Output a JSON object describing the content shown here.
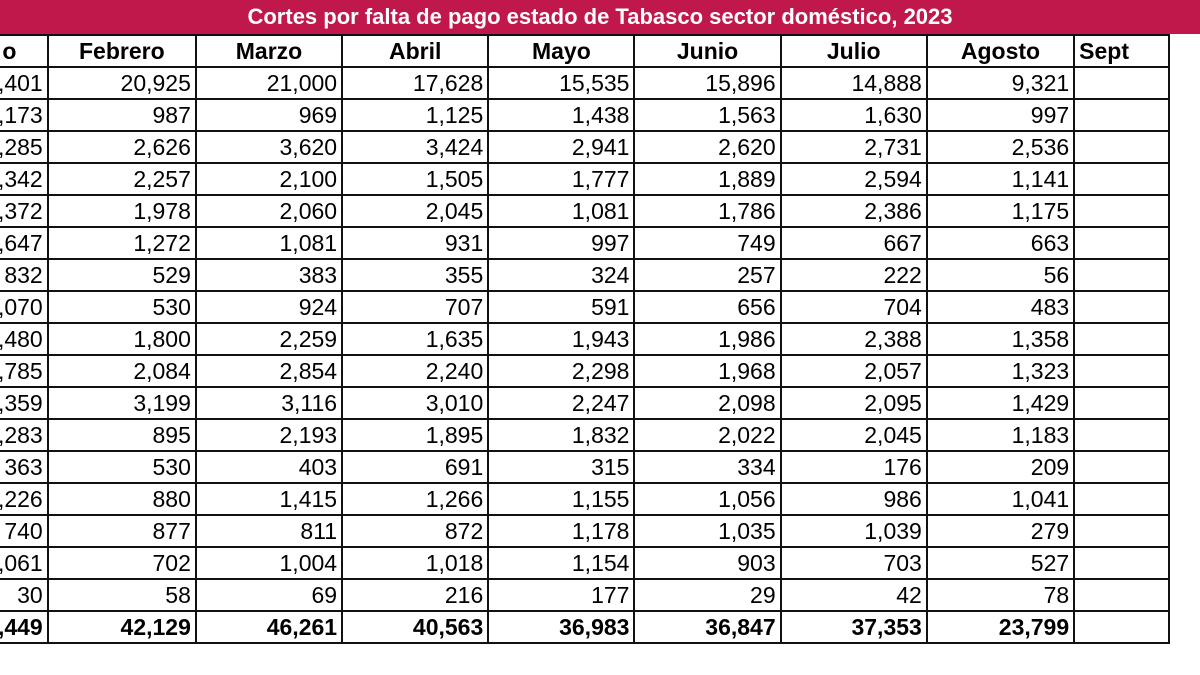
{
  "title": "Cortes por falta de pago estado de Tabasco sector doméstico, 2023",
  "headers": [
    "o",
    "Febrero",
    "Marzo",
    "Abril",
    "Mayo",
    "Junio",
    "Julio",
    "Agosto",
    "Sept"
  ],
  "rows": [
    [
      ",401",
      "20,925",
      "21,000",
      "17,628",
      "15,535",
      "15,896",
      "14,888",
      "9,321",
      ""
    ],
    [
      ",173",
      "987",
      "969",
      "1,125",
      "1,438",
      "1,563",
      "1,630",
      "997",
      ""
    ],
    [
      ",285",
      "2,626",
      "3,620",
      "3,424",
      "2,941",
      "2,620",
      "2,731",
      "2,536",
      ""
    ],
    [
      ",342",
      "2,257",
      "2,100",
      "1,505",
      "1,777",
      "1,889",
      "2,594",
      "1,141",
      ""
    ],
    [
      ",372",
      "1,978",
      "2,060",
      "2,045",
      "1,081",
      "1,786",
      "2,386",
      "1,175",
      ""
    ],
    [
      ",647",
      "1,272",
      "1,081",
      "931",
      "997",
      "749",
      "667",
      "663",
      ""
    ],
    [
      "832",
      "529",
      "383",
      "355",
      "324",
      "257",
      "222",
      "56",
      ""
    ],
    [
      ",070",
      "530",
      "924",
      "707",
      "591",
      "656",
      "704",
      "483",
      ""
    ],
    [
      ",480",
      "1,800",
      "2,259",
      "1,635",
      "1,943",
      "1,986",
      "2,388",
      "1,358",
      ""
    ],
    [
      ",785",
      "2,084",
      "2,854",
      "2,240",
      "2,298",
      "1,968",
      "2,057",
      "1,323",
      ""
    ],
    [
      ",359",
      "3,199",
      "3,116",
      "3,010",
      "2,247",
      "2,098",
      "2,095",
      "1,429",
      ""
    ],
    [
      ",283",
      "895",
      "2,193",
      "1,895",
      "1,832",
      "2,022",
      "2,045",
      "1,183",
      ""
    ],
    [
      "363",
      "530",
      "403",
      "691",
      "315",
      "334",
      "176",
      "209",
      ""
    ],
    [
      ",226",
      "880",
      "1,415",
      "1,266",
      "1,155",
      "1,056",
      "986",
      "1,041",
      ""
    ],
    [
      "740",
      "877",
      "811",
      "872",
      "1,178",
      "1,035",
      "1,039",
      "279",
      ""
    ],
    [
      ",061",
      "702",
      "1,004",
      "1,018",
      "1,154",
      "903",
      "703",
      "527",
      ""
    ],
    [
      "30",
      "58",
      "69",
      "216",
      "177",
      "29",
      "42",
      "78",
      ""
    ]
  ],
  "totals": [
    ",449",
    "42,129",
    "46,261",
    "40,563",
    "36,983",
    "36,847",
    "37,353",
    "23,799",
    ""
  ]
}
